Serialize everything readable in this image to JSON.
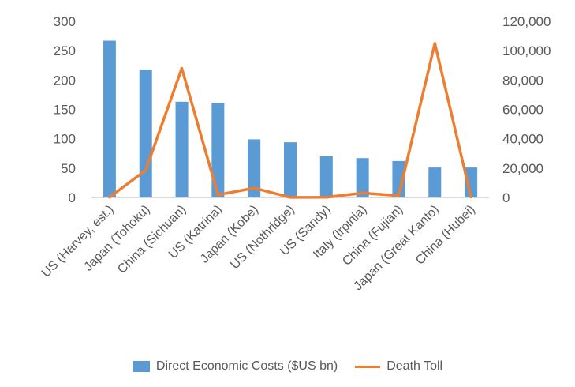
{
  "chart_data": {
    "type": "bar",
    "title": "",
    "xlabel": "",
    "ylabel": "",
    "categories": [
      "US (Harvey, est.)",
      "Japan (Tohoku)",
      "China (Sichuan)",
      "US (Katrina)",
      "Japan (Kobe)",
      "US (Nothridge)",
      "US (Sandy)",
      "Italy (Irpinia)",
      "China (Fujian)",
      "Japan (Great Kanto)",
      "China (Hubei)"
    ],
    "series": [
      {
        "name": "Direct Economic Costs ($US bn)",
        "type": "bar",
        "axis": "left",
        "color": "#5b9bd5",
        "values": [
          267,
          218,
          163,
          161,
          99,
          94,
          70,
          67,
          62,
          51,
          51
        ]
      },
      {
        "name": "Death Toll",
        "type": "line",
        "axis": "right",
        "color": "#ed7d31",
        "values": [
          200,
          18500,
          88000,
          1800,
          6400,
          60,
          150,
          3000,
          1200,
          105000,
          300
        ]
      }
    ],
    "y_left": {
      "lim": [
        0,
        300
      ],
      "ticks": [
        0,
        50,
        100,
        150,
        200,
        250,
        300
      ],
      "tick_labels": [
        "0",
        "50",
        "100",
        "150",
        "200",
        "250",
        "300"
      ]
    },
    "y_right": {
      "lim": [
        0,
        120000
      ],
      "ticks": [
        0,
        20000,
        40000,
        60000,
        80000,
        100000,
        120000
      ],
      "tick_labels": [
        "0",
        "20,000",
        "40,000",
        "60,000",
        "80,000",
        "100,000",
        "120,000"
      ]
    },
    "grid": false,
    "legend_position": "bottom"
  }
}
